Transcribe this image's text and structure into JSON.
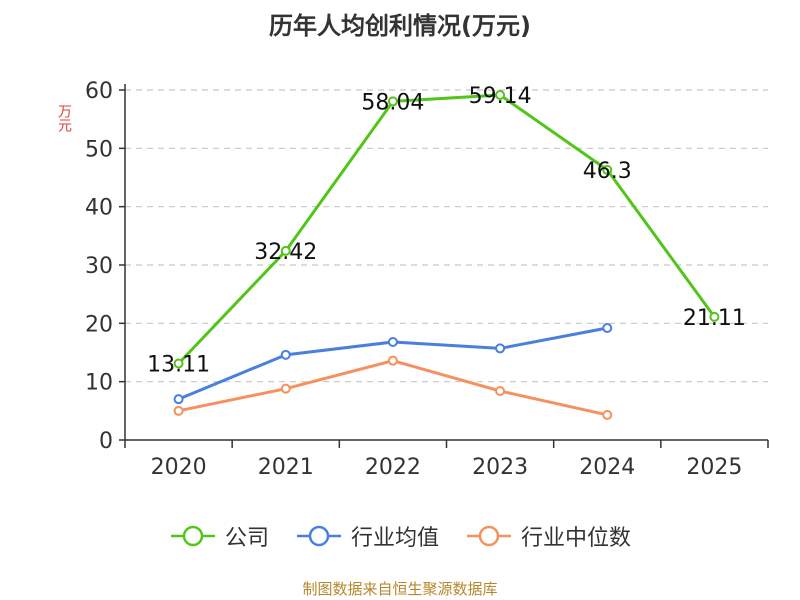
{
  "chart_data": {
    "type": "line",
    "title": "历年人均创利情况(万元)",
    "ylabel": "万元",
    "categories": [
      "2020",
      "2021",
      "2022",
      "2023",
      "2024",
      "2025"
    ],
    "ylim": [
      0,
      60
    ],
    "yticks": [
      0,
      10,
      20,
      30,
      40,
      50,
      60
    ],
    "grid": true,
    "legend_position": "bottom",
    "series": [
      {
        "name": "公司",
        "color": "#52c41a",
        "values": [
          13.11,
          32.42,
          58.04,
          59.14,
          46.3,
          21.11
        ],
        "labels": [
          "13.11",
          "32.42",
          "58.04",
          "59.14",
          "46.3",
          "21.11"
        ]
      },
      {
        "name": "行业均值",
        "color": "#4a7fdd",
        "values": [
          7.0,
          14.6,
          16.8,
          15.7,
          19.2,
          null
        ]
      },
      {
        "name": "行业中位数",
        "color": "#f5915e",
        "values": [
          5.0,
          8.8,
          13.6,
          8.4,
          4.3,
          null
        ]
      }
    ]
  },
  "footer": {
    "source": "制图数据来自恒生聚源数据库"
  }
}
